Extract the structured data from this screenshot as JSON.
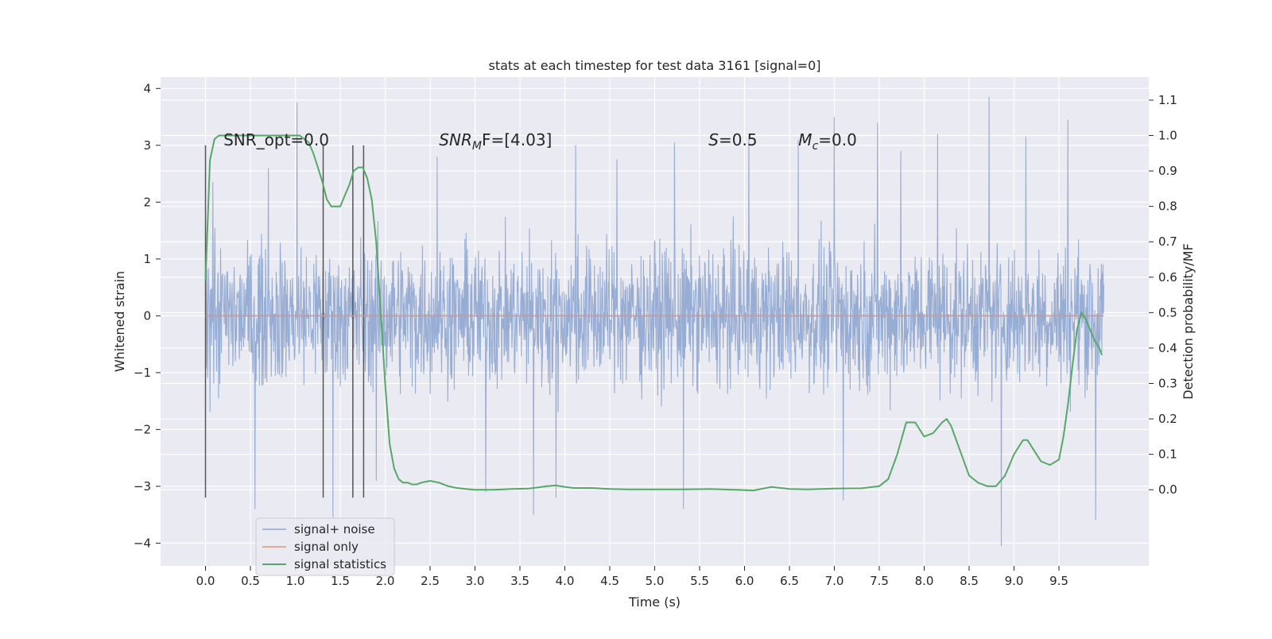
{
  "chart_data": {
    "type": "line",
    "title": "stats at each timestep for test data 3161 [signal=0]",
    "xlabel": "Time (s)",
    "ylabel": "Whitened strain",
    "y2label": "Detection probability/MF",
    "xlim": [
      -0.5,
      10.5
    ],
    "ylim": [
      -4.4,
      4.2
    ],
    "y2lim": [
      -0.215,
      1.165
    ],
    "x_ticks": [
      "0.0",
      "0.5",
      "1.0",
      "1.5",
      "2.0",
      "2.5",
      "3.0",
      "3.5",
      "4.0",
      "4.5",
      "5.0",
      "5.5",
      "6.0",
      "6.5",
      "7.0",
      "7.5",
      "8.0",
      "8.5",
      "9.0",
      "9.5"
    ],
    "y_ticks": [
      "4",
      "3",
      "2",
      "1",
      "0",
      "−1",
      "−2",
      "−3",
      "−4"
    ],
    "y2_ticks": [
      "1.1",
      "1.0",
      "0.9",
      "0.8",
      "0.7",
      "0.6",
      "0.5",
      "0.4",
      "0.3",
      "0.2",
      "0.1",
      "0.0"
    ],
    "grid": true,
    "legend_position": "lower-left",
    "annotations": {
      "snr_opt": "SNR_opt=0.0",
      "snr_mf_prefix": "SNR",
      "snr_mf_sub": "M",
      "snr_mf_suffix": "F=[4.03]",
      "s_symbol": "S",
      "s_value": "=0.5",
      "mc_symbol": "M",
      "mc_sub": "c",
      "mc_value": "=0.0"
    },
    "vlines": {
      "x": [
        0.0,
        1.31,
        1.64,
        1.76
      ],
      "ymin": -3.2,
      "ymax": 3.0
    },
    "noise_envelope": {
      "x": [
        0.0,
        10.0
      ],
      "typical_range": [
        -2.0,
        2.0
      ],
      "spikes": [
        [
          0.08,
          2.35
        ],
        [
          0.55,
          -3.4
        ],
        [
          0.7,
          2.6
        ],
        [
          1.02,
          3.75
        ],
        [
          1.42,
          -3.55
        ],
        [
          1.9,
          -2.9
        ],
        [
          2.58,
          2.8
        ],
        [
          3.12,
          -3.1
        ],
        [
          3.65,
          -3.5
        ],
        [
          3.9,
          -3.2
        ],
        [
          4.12,
          3.0
        ],
        [
          4.58,
          2.75
        ],
        [
          5.22,
          3.05
        ],
        [
          5.32,
          -3.4
        ],
        [
          6.05,
          3.2
        ],
        [
          6.6,
          3.1
        ],
        [
          7.0,
          3.5
        ],
        [
          7.1,
          -3.25
        ],
        [
          7.48,
          3.4
        ],
        [
          7.74,
          2.9
        ],
        [
          8.15,
          3.2
        ],
        [
          8.72,
          3.85
        ],
        [
          8.86,
          -4.05
        ],
        [
          9.13,
          3.15
        ],
        [
          9.6,
          3.45
        ],
        [
          9.91,
          -3.6
        ]
      ]
    },
    "series": [
      {
        "name": "signal+ noise",
        "color": "#8fa6d0",
        "axis": "left"
      },
      {
        "name": "signal only",
        "color": "#e0917a",
        "axis": "left",
        "x": [
          0.0,
          10.0
        ],
        "y": [
          0.0,
          0.0
        ]
      },
      {
        "name": "signal statistics",
        "color": "#55a868",
        "axis": "right",
        "x": [
          0.0,
          0.05,
          0.1,
          0.15,
          0.2,
          0.3,
          0.4,
          0.5,
          0.6,
          0.7,
          0.8,
          0.9,
          1.0,
          1.05,
          1.1,
          1.15,
          1.2,
          1.25,
          1.3,
          1.35,
          1.4,
          1.45,
          1.5,
          1.55,
          1.6,
          1.65,
          1.7,
          1.75,
          1.8,
          1.85,
          1.9,
          1.95,
          2.0,
          2.05,
          2.1,
          2.15,
          2.2,
          2.25,
          2.3,
          2.35,
          2.4,
          2.5,
          2.6,
          2.7,
          2.8,
          2.9,
          3.0,
          3.2,
          3.4,
          3.6,
          3.8,
          3.9,
          4.0,
          4.1,
          4.3,
          4.5,
          4.7,
          5.0,
          5.3,
          5.6,
          5.9,
          6.1,
          6.3,
          6.5,
          6.7,
          7.0,
          7.3,
          7.5,
          7.6,
          7.7,
          7.8,
          7.9,
          8.0,
          8.1,
          8.2,
          8.25,
          8.3,
          8.4,
          8.5,
          8.6,
          8.7,
          8.8,
          8.9,
          9.0,
          9.1,
          9.15,
          9.2,
          9.25,
          9.3,
          9.4,
          9.5,
          9.55,
          9.6,
          9.65,
          9.7,
          9.75,
          9.8,
          9.85,
          9.9,
          9.95,
          9.98
        ],
        "y": [
          0.59,
          0.93,
          0.99,
          1.0,
          1.0,
          1.0,
          1.0,
          1.0,
          1.0,
          1.0,
          1.0,
          1.0,
          1.0,
          1.0,
          0.99,
          0.98,
          0.95,
          0.91,
          0.87,
          0.82,
          0.8,
          0.8,
          0.8,
          0.83,
          0.86,
          0.9,
          0.91,
          0.91,
          0.88,
          0.82,
          0.7,
          0.5,
          0.3,
          0.13,
          0.06,
          0.03,
          0.02,
          0.02,
          0.015,
          0.015,
          0.02,
          0.025,
          0.02,
          0.01,
          0.005,
          0.002,
          0.0,
          0.0,
          0.002,
          0.003,
          0.01,
          0.012,
          0.008,
          0.005,
          0.005,
          0.002,
          0.001,
          0.001,
          0.001,
          0.002,
          0.0,
          -0.002,
          0.008,
          0.002,
          0.001,
          0.003,
          0.004,
          0.01,
          0.03,
          0.1,
          0.19,
          0.19,
          0.15,
          0.16,
          0.19,
          0.2,
          0.18,
          0.11,
          0.04,
          0.02,
          0.01,
          0.01,
          0.04,
          0.1,
          0.14,
          0.14,
          0.12,
          0.1,
          0.08,
          0.07,
          0.085,
          0.15,
          0.24,
          0.35,
          0.45,
          0.5,
          0.48,
          0.45,
          0.42,
          0.4,
          0.38
        ]
      }
    ]
  }
}
